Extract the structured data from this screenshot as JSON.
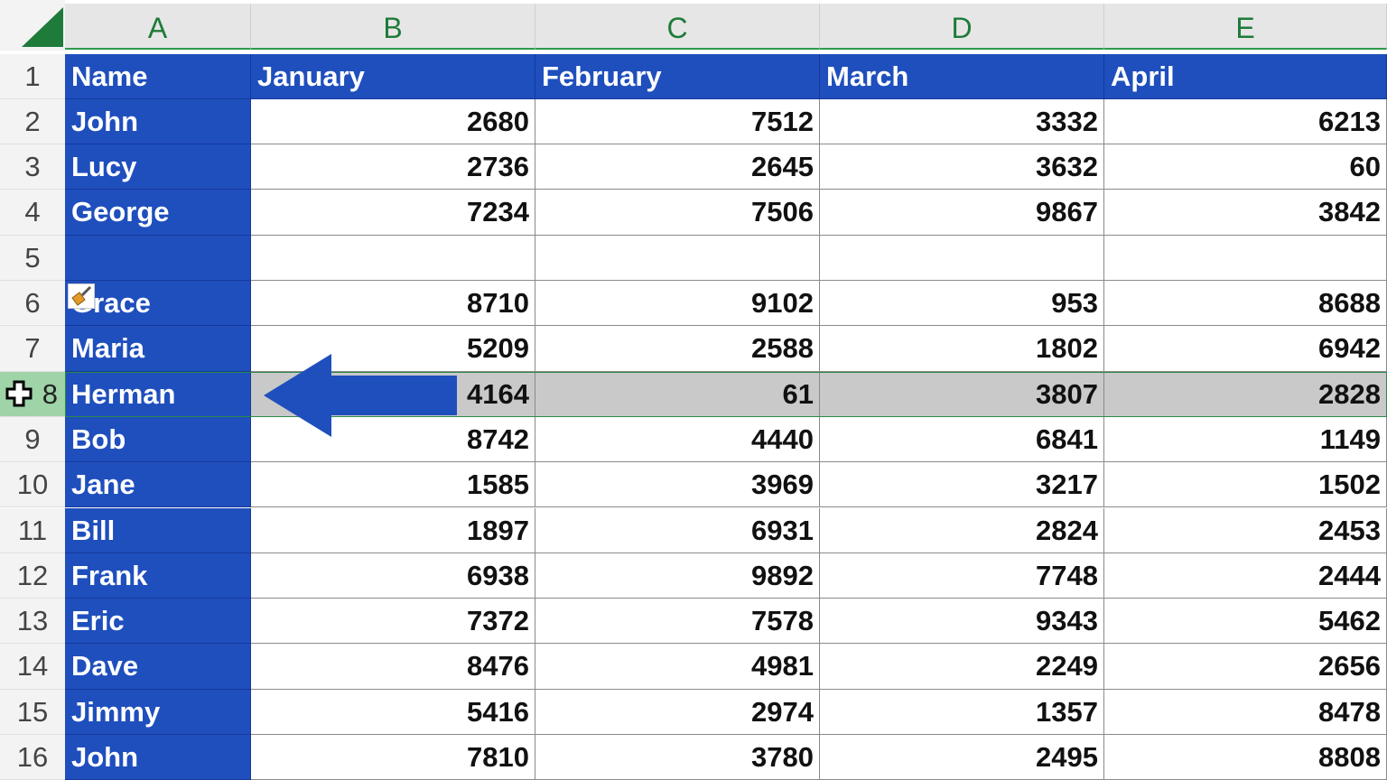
{
  "columns": [
    "A",
    "B",
    "C",
    "D",
    "E"
  ],
  "headers": [
    "Name",
    "January",
    "February",
    "March",
    "April"
  ],
  "rows": [
    {
      "n": "2",
      "name": "John",
      "v": [
        "2680",
        "7512",
        "3332",
        "6213"
      ]
    },
    {
      "n": "3",
      "name": "Lucy",
      "v": [
        "2736",
        "2645",
        "3632",
        "60"
      ]
    },
    {
      "n": "4",
      "name": "George",
      "v": [
        "7234",
        "7506",
        "9867",
        "3842"
      ]
    },
    {
      "n": "5",
      "name": "",
      "v": [
        "",
        "",
        "",
        ""
      ]
    },
    {
      "n": "6",
      "name": "Grace",
      "v": [
        "8710",
        "9102",
        "953",
        "8688"
      ]
    },
    {
      "n": "7",
      "name": "Maria",
      "v": [
        "5209",
        "2588",
        "1802",
        "6942"
      ]
    },
    {
      "n": "8",
      "name": "Herman",
      "v": [
        "4164",
        "61",
        "3807",
        "2828"
      ],
      "selected": true
    },
    {
      "n": "9",
      "name": "Bob",
      "v": [
        "8742",
        "4440",
        "6841",
        "1149"
      ]
    },
    {
      "n": "10",
      "name": "Jane",
      "v": [
        "1585",
        "3969",
        "3217",
        "1502"
      ]
    },
    {
      "n": "11",
      "name": "Bill",
      "v": [
        "1897",
        "6931",
        "2824",
        "2453"
      ]
    },
    {
      "n": "12",
      "name": "Frank",
      "v": [
        "6938",
        "9892",
        "7748",
        "2444"
      ]
    },
    {
      "n": "13",
      "name": "Eric",
      "v": [
        "7372",
        "7578",
        "9343",
        "5462"
      ]
    },
    {
      "n": "14",
      "name": "Dave",
      "v": [
        "8476",
        "4981",
        "2249",
        "2656"
      ]
    },
    {
      "n": "15",
      "name": "Jimmy",
      "v": [
        "5416",
        "2974",
        "1357",
        "8478"
      ]
    },
    {
      "n": "16",
      "name": "John",
      "v": [
        "7810",
        "3780",
        "2495",
        "8808"
      ]
    }
  ],
  "header_row_number": "1",
  "icons": {
    "select_all": "select-all-triangle",
    "format_painter": "paintbrush-icon",
    "cursor": "plus-cursor-icon",
    "annotation": "left-arrow"
  },
  "colors": {
    "header_fill": "#1f4fbd",
    "selected_row": "#c9c9c9",
    "row_header_selected": "#9fd3a8",
    "accent": "#1e7b3a"
  }
}
